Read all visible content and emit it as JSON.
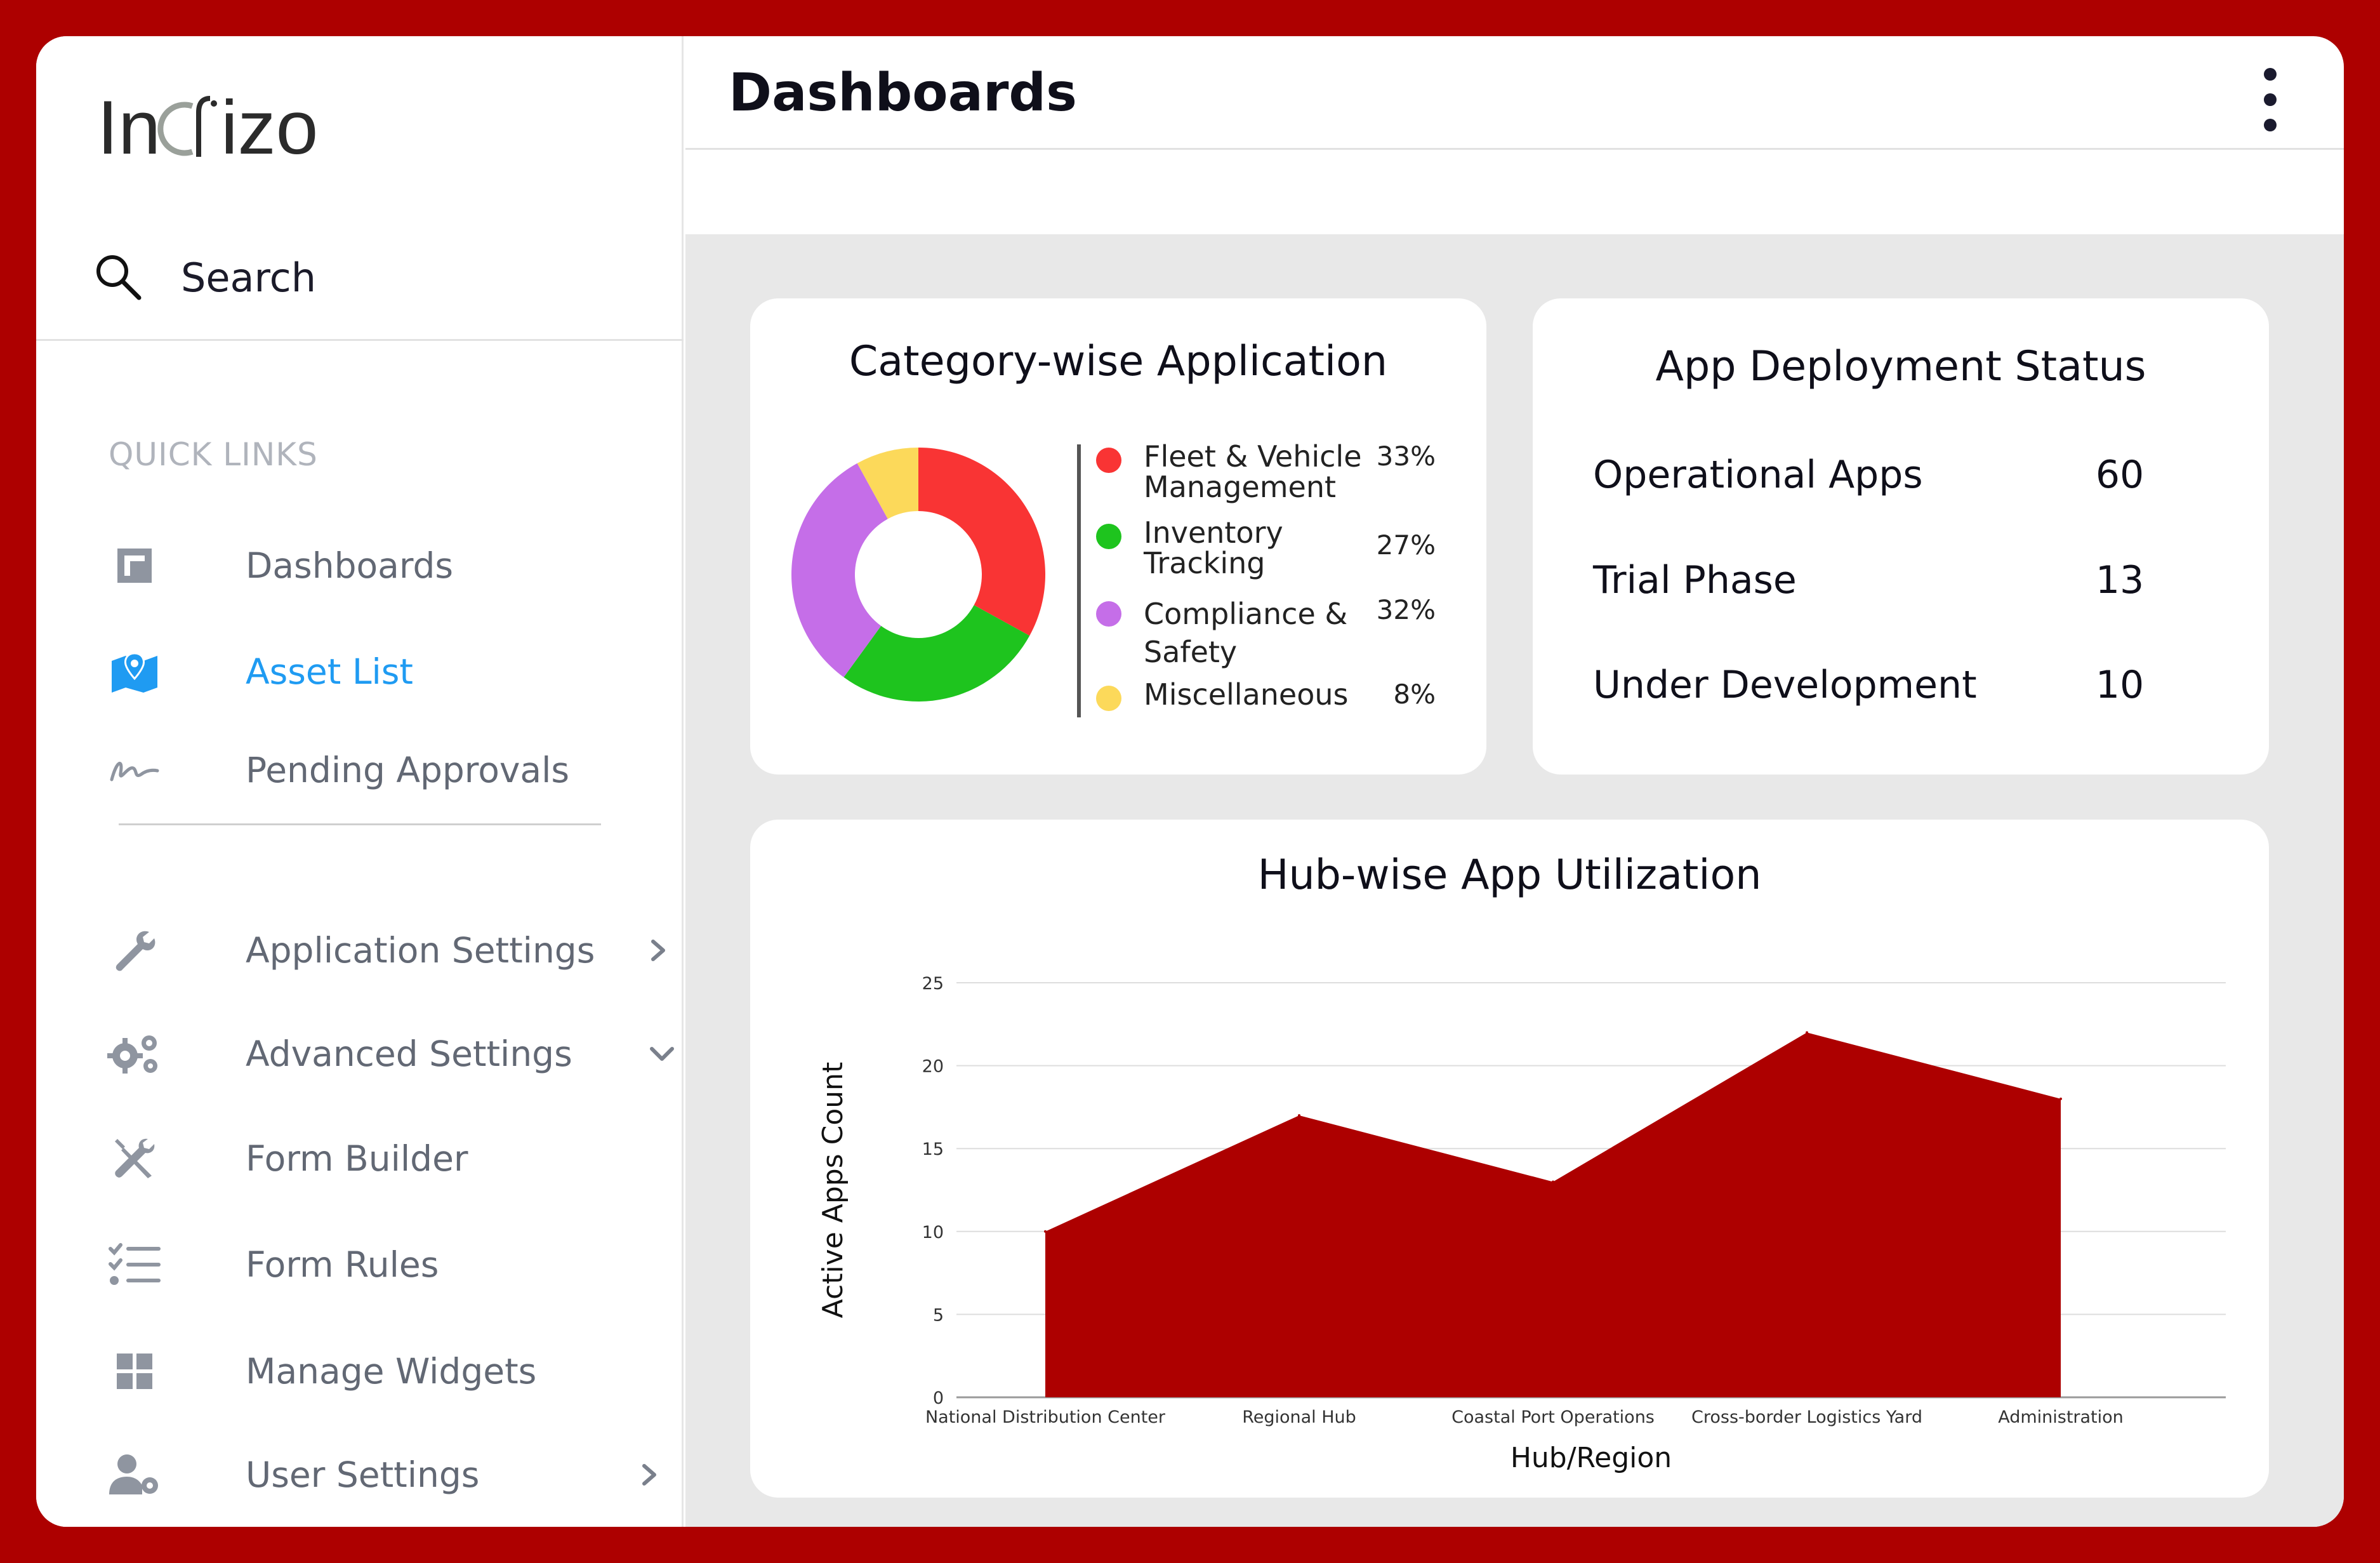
{
  "brand": {
    "name": "Indizo"
  },
  "sidebar": {
    "search_label": "Search",
    "quick_links_title": "QUICK LINKS",
    "quick_links": [
      {
        "label": "Dashboards",
        "icon": "dashboard-icon"
      },
      {
        "label": "Asset List",
        "icon": "map-pin-icon",
        "active": true
      },
      {
        "label": "Pending Approvals",
        "icon": "signature-icon"
      }
    ],
    "settings": [
      {
        "label": "Application Settings",
        "icon": "wrench-icon",
        "chevron": "right"
      },
      {
        "label": "Advanced Settings",
        "icon": "gears-icon",
        "chevron": "down"
      },
      {
        "label": "Form Builder",
        "icon": "tools-icon"
      },
      {
        "label": "Form Rules",
        "icon": "checklist-icon"
      },
      {
        "label": "Manage Widgets",
        "icon": "grid-icon"
      },
      {
        "label": "User Settings",
        "icon": "user-gear-icon",
        "chevron": "right"
      }
    ]
  },
  "header": {
    "title": "Dashboards"
  },
  "category_card": {
    "title": "Category-wise Application",
    "legend": [
      {
        "label": "Fleet & Vehicle Management",
        "line1": "Fleet & Vehicle",
        "line2": "Management",
        "pct": "33%",
        "color": "#f93434"
      },
      {
        "label": "Inventory Tracking",
        "line1": "Inventory",
        "line2": "Tracking",
        "pct": "27%",
        "color": "#1ec41e"
      },
      {
        "label": "Compliance & Safety",
        "line1": "Compliance &",
        "line2": "Safety",
        "pct": "32%",
        "color": "#c56ee8"
      },
      {
        "label": "Miscellaneous",
        "line1": "Miscellaneous",
        "line2": "",
        "pct": "8%",
        "color": "#fcd95a"
      }
    ]
  },
  "deploy_card": {
    "title": "App Deployment Status",
    "rows": [
      {
        "label": "Operational Apps",
        "value": "60"
      },
      {
        "label": "Trial Phase",
        "value": "13"
      },
      {
        "label": "Under Development",
        "value": "10"
      }
    ]
  },
  "chart_data": [
    {
      "type": "pie",
      "title": "Category-wise Application",
      "categories": [
        "Fleet & Vehicle Management",
        "Inventory Tracking",
        "Compliance & Safety",
        "Miscellaneous"
      ],
      "values": [
        33,
        27,
        32,
        8
      ],
      "colors": [
        "#f93434",
        "#1ec41e",
        "#c56ee8",
        "#fcd95a"
      ],
      "donut": true
    },
    {
      "type": "area",
      "title": "Hub-wise App Utilization",
      "categories": [
        "National Distribution Center",
        "Regional Hub",
        "Coastal Port Operations",
        "Cross-border Logistics Yard",
        "Administration"
      ],
      "values": [
        10,
        17,
        13,
        22,
        18
      ],
      "xlabel": "Hub/Region",
      "ylabel": "Active Apps Count",
      "ylim": [
        0,
        25
      ],
      "yticks": [
        0,
        5,
        10,
        15,
        20,
        25
      ],
      "grid": true,
      "color": "#ad0000"
    }
  ]
}
